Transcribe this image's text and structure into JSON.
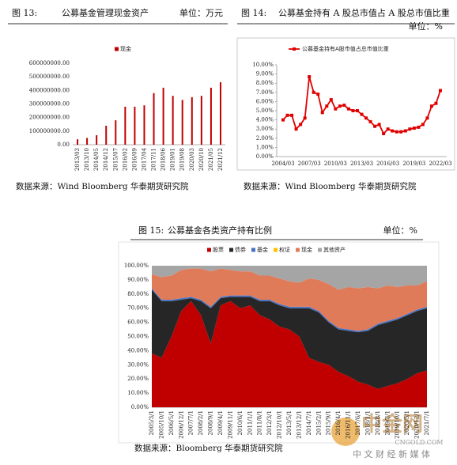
{
  "chart_data": [
    {
      "type": "bar",
      "figure_label": "图 13:",
      "title": "公募基金管理现金资产",
      "unit": "单位：万元",
      "source": "数据来源：Wind    Bloomberg  华泰期货研究院",
      "categories": [
        "2013/03",
        "2013/10",
        "2014/05",
        "2014/12",
        "2015/07",
        "2016/02",
        "2016/09",
        "2017/04",
        "2017/11",
        "2018/06",
        "2019/01",
        "2019/08",
        "2020/03",
        "2020/10",
        "2021/05",
        "2021/12"
      ],
      "series": [
        {
          "name": "现金",
          "color": "#c00000",
          "values": [
            40000000,
            50000000,
            70000000,
            140000000,
            180000000,
            280000000,
            280000000,
            290000000,
            380000000,
            420000000,
            360000000,
            330000000,
            350000000,
            360000000,
            420000000,
            460000000
          ]
        }
      ],
      "ylim": [
        0,
        600000000
      ],
      "yticks": [
        {
          "value": 0,
          "label": "0.00"
        },
        {
          "value": 100000000,
          "label": "100000000.00"
        },
        {
          "value": 200000000,
          "label": "200000000.00"
        },
        {
          "value": 300000000,
          "label": "300000000.00"
        },
        {
          "value": 400000000,
          "label": "400000000.00"
        },
        {
          "value": 500000000,
          "label": "500000000.00"
        },
        {
          "value": 600000000,
          "label": "600000000.00"
        }
      ]
    },
    {
      "type": "line",
      "figure_label": "图 14:",
      "title": "公募基金持有 A 股总市值占 A 股总市值比重",
      "unit": "单位：%",
      "source": "数据来源：Wind    Bloomberg  华泰期货研究院",
      "categories": [
        "2004/03",
        null,
        null,
        null,
        null,
        null,
        "2007/03",
        null,
        null,
        null,
        null,
        null,
        "2010/03",
        null,
        null,
        null,
        null,
        null,
        "2013/03",
        null,
        null,
        null,
        null,
        null,
        "2016/03",
        null,
        null,
        null,
        null,
        null,
        "2019/03",
        null,
        null,
        null,
        null,
        null,
        "2022/03"
      ],
      "series": [
        {
          "name": "公募基金持有A股市值占总市值比重",
          "color": "#e00000",
          "values": [
            4.0,
            4.5,
            4.5,
            3.0,
            3.5,
            4.2,
            8.7,
            7.0,
            6.8,
            4.8,
            5.5,
            6.2,
            5.2,
            5.5,
            5.6,
            5.2,
            5.0,
            5.0,
            4.6,
            4.2,
            3.8,
            3.3,
            3.5,
            2.5,
            3.0,
            2.8,
            2.7,
            2.7,
            2.8,
            3.0,
            3.1,
            3.2,
            3.5,
            4.2,
            5.5,
            5.8,
            7.2
          ]
        }
      ],
      "ylim": [
        0,
        10
      ],
      "yticks": [
        {
          "value": 0,
          "label": "0.00%"
        },
        {
          "value": 1,
          "label": "1.00%"
        },
        {
          "value": 2,
          "label": "2.00%"
        },
        {
          "value": 3,
          "label": "3.00%"
        },
        {
          "value": 4,
          "label": "4.00%"
        },
        {
          "value": 5,
          "label": "5.00%"
        },
        {
          "value": 6,
          "label": "6.00%"
        },
        {
          "value": 7,
          "label": "7.00%"
        },
        {
          "value": 8,
          "label": "8.00%"
        },
        {
          "value": 9,
          "label": "9.00%"
        },
        {
          "value": 10,
          "label": "10.00%"
        }
      ]
    },
    {
      "type": "area",
      "figure_label": "图 15:",
      "title": "公募基金各类资产持有比例",
      "unit": "单位：%",
      "source": "数据来源：Bloomberg  华泰期货研究院",
      "categories": [
        "2005/3/1",
        "2005/10/1",
        "2006/5/1",
        "2006/12/1",
        "2007/7/1",
        "2008/2/1",
        "2008/9/1",
        "2009/4/1",
        "2009/11/1",
        "2010/6/1",
        "2011/1/1",
        "2011/8/1",
        "2012/3/1",
        "2012/10/1",
        "2013/5/1",
        "2013/12/1",
        "2014/7/1",
        "2015/2/1",
        "2015/9/1",
        "2016/4/1",
        "2016/11/1",
        "2017/6/1",
        "2018/1/1",
        "2018/8/1",
        "2019/3/1",
        "2019/10/1",
        "2020/5/1",
        "2020/12/1",
        "2021/7/1"
      ],
      "series": [
        {
          "name": "股票",
          "color": "#c00000",
          "values": [
            38,
            35,
            50,
            68,
            75,
            65,
            45,
            72,
            75,
            70,
            72,
            65,
            62,
            57,
            55,
            50,
            35,
            32,
            30,
            25,
            22,
            18,
            16,
            13,
            15,
            17,
            20,
            24,
            26
          ]
        },
        {
          "name": "债券",
          "color": "#262626",
          "values": [
            45,
            40,
            25,
            8,
            2,
            10,
            25,
            5,
            3,
            8,
            6,
            10,
            13,
            15,
            15,
            20,
            35,
            35,
            30,
            30,
            32,
            35,
            38,
            45,
            45,
            45,
            45,
            44,
            44
          ]
        },
        {
          "name": "基金",
          "color": "#4472c4",
          "values": [
            1,
            1,
            1,
            1,
            1,
            1,
            1,
            1,
            1,
            1,
            1,
            1,
            1,
            1,
            1,
            1,
            1,
            1,
            1,
            1,
            1,
            1,
            1,
            1,
            1,
            1,
            1,
            1,
            1
          ]
        },
        {
          "name": "权证",
          "color": "#ffc000",
          "values": [
            0,
            0,
            0,
            0,
            0,
            0,
            0,
            0,
            0,
            0,
            0,
            0,
            0,
            0,
            0,
            0,
            0,
            0,
            0,
            0,
            0,
            0,
            0,
            0,
            0,
            0,
            0,
            0,
            0
          ]
        },
        {
          "name": "现金",
          "color": "#e07b5a",
          "values": [
            10,
            16,
            17,
            20,
            20,
            22,
            25,
            20,
            18,
            17,
            17,
            17,
            17,
            18,
            18,
            17,
            20,
            22,
            26,
            27,
            30,
            30,
            30,
            25,
            25,
            22,
            20,
            17,
            18
          ]
        },
        {
          "name": "其他资产",
          "color": "#a5a5a5",
          "values": [
            6,
            8,
            7,
            3,
            2,
            2,
            4,
            2,
            3,
            4,
            4,
            7,
            7,
            9,
            11,
            12,
            9,
            10,
            13,
            17,
            15,
            16,
            15,
            16,
            14,
            15,
            14,
            14,
            11
          ]
        }
      ],
      "ylim": [
        0,
        100
      ],
      "yticks": [
        {
          "value": 0,
          "label": "0.00%"
        },
        {
          "value": 10,
          "label": "10.00%"
        },
        {
          "value": 20,
          "label": "20.00%"
        },
        {
          "value": 30,
          "label": "30.00%"
        },
        {
          "value": 40,
          "label": "40.00%"
        },
        {
          "value": 50,
          "label": "50.00%"
        },
        {
          "value": 60,
          "label": "60.00%"
        },
        {
          "value": 70,
          "label": "70.00%"
        },
        {
          "value": 80,
          "label": "80.00%"
        },
        {
          "value": 90,
          "label": "90.00%"
        },
        {
          "value": 100,
          "label": "100.00%"
        }
      ]
    }
  ],
  "watermark": {
    "logo": "中金网",
    "url": "CNGOLD.COM",
    "slogan": "中 文 财 经 新 媒 体"
  }
}
